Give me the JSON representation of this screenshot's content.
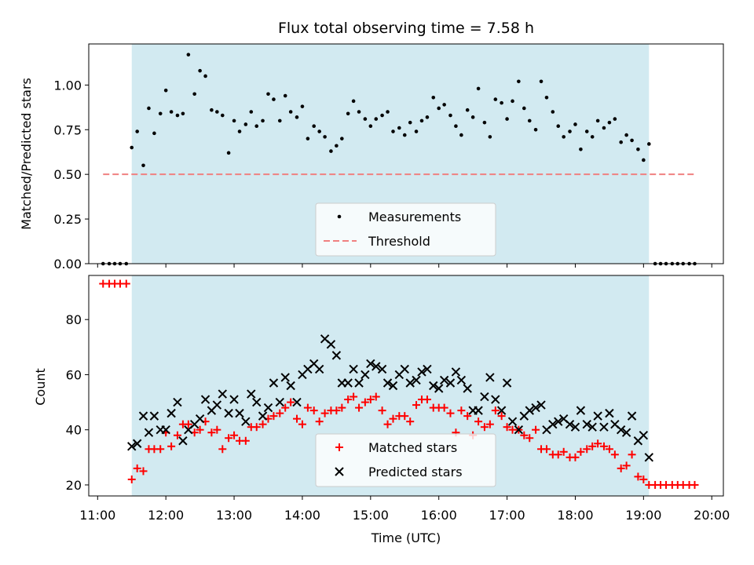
{
  "chart_data": [
    {
      "type": "scatter",
      "title": "Flux total observing time = 7.58 h",
      "ylabel": "Matched/Predicted stars",
      "xlim": [
        10.87,
        20.17
      ],
      "ylim": [
        0.0,
        1.23
      ],
      "yticks": [
        "0.00",
        "0.25",
        "0.50",
        "0.75",
        "1.00"
      ],
      "shaded_span": {
        "x": [
          11.5,
          19.08
        ],
        "color": "#add8e6"
      },
      "legend_position": "lower center",
      "series": [
        {
          "name": "Measurements",
          "color": "#000000",
          "marker": "dot",
          "x": [
            11.08,
            11.17,
            11.25,
            11.33,
            11.42,
            11.5,
            11.58,
            11.67,
            11.75,
            11.83,
            11.92,
            12.0,
            12.08,
            12.17,
            12.25,
            12.33,
            12.42,
            12.5,
            12.58,
            12.67,
            12.75,
            12.83,
            12.92,
            13.0,
            13.08,
            13.17,
            13.25,
            13.33,
            13.42,
            13.5,
            13.58,
            13.67,
            13.75,
            13.83,
            13.92,
            14.0,
            14.08,
            14.17,
            14.25,
            14.33,
            14.42,
            14.5,
            14.58,
            14.67,
            14.75,
            14.83,
            14.92,
            15.0,
            15.08,
            15.17,
            15.25,
            15.33,
            15.42,
            15.5,
            15.58,
            15.67,
            15.75,
            15.83,
            15.92,
            16.0,
            16.08,
            16.17,
            16.25,
            16.33,
            16.42,
            16.5,
            16.58,
            16.67,
            16.75,
            16.83,
            16.92,
            17.0,
            17.08,
            17.17,
            17.25,
            17.33,
            17.42,
            17.5,
            17.58,
            17.67,
            17.75,
            17.83,
            17.92,
            18.0,
            18.08,
            18.17,
            18.25,
            18.33,
            18.42,
            18.5,
            18.58,
            18.67,
            18.75,
            18.83,
            18.92,
            19.0,
            19.08,
            19.17,
            19.25,
            19.33,
            19.42,
            19.5,
            19.58,
            19.67,
            19.75
          ],
          "y": [
            0.0,
            0.0,
            0.0,
            0.0,
            0.0,
            0.65,
            0.74,
            0.55,
            0.87,
            0.73,
            0.84,
            0.97,
            0.85,
            0.83,
            0.84,
            1.17,
            0.95,
            1.08,
            1.05,
            0.86,
            0.85,
            0.83,
            0.62,
            0.8,
            0.74,
            0.78,
            0.85,
            0.77,
            0.8,
            0.95,
            0.92,
            0.8,
            0.94,
            0.85,
            0.82,
            0.88,
            0.7,
            0.77,
            0.74,
            0.71,
            0.63,
            0.66,
            0.7,
            0.84,
            0.91,
            0.85,
            0.81,
            0.77,
            0.81,
            0.83,
            0.85,
            0.74,
            0.76,
            0.72,
            0.79,
            0.74,
            0.8,
            0.82,
            0.93,
            0.87,
            0.89,
            0.83,
            0.77,
            0.72,
            0.86,
            0.82,
            0.98,
            0.79,
            0.71,
            0.92,
            0.9,
            0.81,
            0.91,
            1.02,
            0.87,
            0.8,
            0.75,
            1.02,
            0.93,
            0.85,
            0.77,
            0.71,
            0.74,
            0.78,
            0.64,
            0.74,
            0.71,
            0.8,
            0.76,
            0.79,
            0.81,
            0.68,
            0.72,
            0.69,
            0.64,
            0.58,
            0.67,
            0.0,
            0.0,
            0.0,
            0.0,
            0.0,
            0.0,
            0.0,
            0.0
          ]
        },
        {
          "name": "Threshold",
          "color": "#f08080",
          "style": "dashed",
          "x": [
            11.08,
            19.75
          ],
          "y": [
            0.5,
            0.5
          ]
        }
      ]
    },
    {
      "type": "scatter",
      "xlabel": "Time (UTC)",
      "ylabel": "Count",
      "xlim": [
        10.87,
        20.17
      ],
      "ylim": [
        16,
        96
      ],
      "xticks": [
        "11:00",
        "12:00",
        "13:00",
        "14:00",
        "15:00",
        "16:00",
        "17:00",
        "18:00",
        "19:00",
        "20:00"
      ],
      "yticks": [
        "20",
        "40",
        "60",
        "80"
      ],
      "shaded_span": {
        "x": [
          11.5,
          19.08
        ],
        "color": "#add8e6"
      },
      "legend_position": "lower center",
      "series": [
        {
          "name": "Matched stars",
          "color": "#ff0000",
          "marker": "plus",
          "x": [
            11.08,
            11.17,
            11.25,
            11.33,
            11.42,
            11.5,
            11.58,
            11.67,
            11.75,
            11.83,
            11.92,
            12.0,
            12.08,
            12.17,
            12.25,
            12.33,
            12.42,
            12.5,
            12.58,
            12.67,
            12.75,
            12.83,
            12.92,
            13.0,
            13.08,
            13.17,
            13.25,
            13.33,
            13.42,
            13.5,
            13.58,
            13.67,
            13.75,
            13.83,
            13.92,
            14.0,
            14.08,
            14.17,
            14.25,
            14.33,
            14.42,
            14.5,
            14.58,
            14.67,
            14.75,
            14.83,
            14.92,
            15.0,
            15.08,
            15.17,
            15.25,
            15.33,
            15.42,
            15.5,
            15.58,
            15.67,
            15.75,
            15.83,
            15.92,
            16.0,
            16.08,
            16.17,
            16.25,
            16.33,
            16.42,
            16.5,
            16.58,
            16.67,
            16.75,
            16.83,
            16.92,
            17.0,
            17.08,
            17.17,
            17.25,
            17.33,
            17.42,
            17.5,
            17.58,
            17.67,
            17.75,
            17.83,
            17.92,
            18.0,
            18.08,
            18.17,
            18.25,
            18.33,
            18.42,
            18.5,
            18.58,
            18.67,
            18.75,
            18.83,
            18.92,
            19.0,
            19.08,
            19.17,
            19.25,
            19.33,
            19.42,
            19.5,
            19.58,
            19.67,
            19.75
          ],
          "y": [
            93,
            93,
            93,
            93,
            93,
            22,
            26,
            25,
            33,
            33,
            33,
            39,
            34,
            38,
            42,
            42,
            39,
            40,
            43,
            39,
            40,
            33,
            37,
            38,
            36,
            36,
            41,
            41,
            42,
            44,
            45,
            46,
            48,
            50,
            44,
            42,
            48,
            47,
            43,
            46,
            47,
            47,
            48,
            51,
            52,
            48,
            50,
            51,
            52,
            47,
            42,
            44,
            45,
            45,
            43,
            49,
            51,
            51,
            48,
            48,
            48,
            46,
            39,
            47,
            45,
            38,
            43,
            41,
            42,
            47,
            45,
            41,
            40,
            40,
            38,
            37,
            40,
            33,
            33,
            31,
            31,
            32,
            30,
            30,
            32,
            33,
            34,
            35,
            34,
            33,
            31,
            26,
            27,
            31,
            23,
            22,
            20,
            20,
            20,
            20,
            20,
            20,
            20,
            20,
            20
          ]
        },
        {
          "name": "Predicted stars",
          "color": "#000000",
          "marker": "x",
          "x": [
            11.5,
            11.58,
            11.67,
            11.75,
            11.83,
            11.92,
            12.0,
            12.08,
            12.17,
            12.25,
            12.33,
            12.42,
            12.5,
            12.58,
            12.67,
            12.75,
            12.83,
            12.92,
            13.0,
            13.08,
            13.17,
            13.25,
            13.33,
            13.42,
            13.5,
            13.58,
            13.67,
            13.75,
            13.83,
            13.92,
            14.0,
            14.08,
            14.17,
            14.25,
            14.33,
            14.42,
            14.5,
            14.58,
            14.67,
            14.75,
            14.83,
            14.92,
            15.0,
            15.08,
            15.17,
            15.25,
            15.33,
            15.42,
            15.5,
            15.58,
            15.67,
            15.75,
            15.83,
            15.92,
            16.0,
            16.08,
            16.17,
            16.25,
            16.33,
            16.42,
            16.5,
            16.58,
            16.67,
            16.75,
            16.83,
            16.92,
            17.0,
            17.08,
            17.17,
            17.25,
            17.33,
            17.42,
            17.5,
            17.58,
            17.67,
            17.75,
            17.83,
            17.92,
            18.0,
            18.08,
            18.17,
            18.25,
            18.33,
            18.42,
            18.5,
            18.58,
            18.67,
            18.75,
            18.83,
            18.92,
            19.0,
            19.08
          ],
          "y": [
            34,
            35,
            45,
            39,
            45,
            40,
            40,
            46,
            50,
            36,
            40,
            42,
            44,
            51,
            47,
            49,
            53,
            46,
            51,
            46,
            43,
            53,
            50,
            45,
            48,
            57,
            50,
            59,
            56,
            50,
            60,
            62,
            64,
            62,
            73,
            71,
            67,
            57,
            57,
            62,
            57,
            60,
            64,
            63,
            62,
            57,
            56,
            60,
            62,
            57,
            58,
            61,
            62,
            56,
            55,
            58,
            57,
            61,
            58,
            55,
            47,
            47,
            52,
            59,
            51,
            47,
            57,
            43,
            40,
            45,
            47,
            48,
            49,
            40,
            42,
            43,
            44,
            42,
            41,
            47,
            42,
            41,
            45,
            41,
            46,
            42,
            40,
            39,
            45,
            36,
            38,
            30
          ]
        }
      ]
    }
  ]
}
